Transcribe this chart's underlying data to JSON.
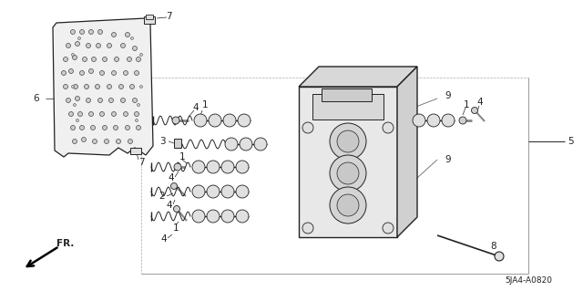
{
  "bg_color": "#ffffff",
  "line_color": "#222222",
  "text_color": "#222222",
  "diagram_code": "5JA4-A0820",
  "fr_label": "FR.",
  "figsize": [
    6.4,
    3.19
  ],
  "dpi": 100
}
